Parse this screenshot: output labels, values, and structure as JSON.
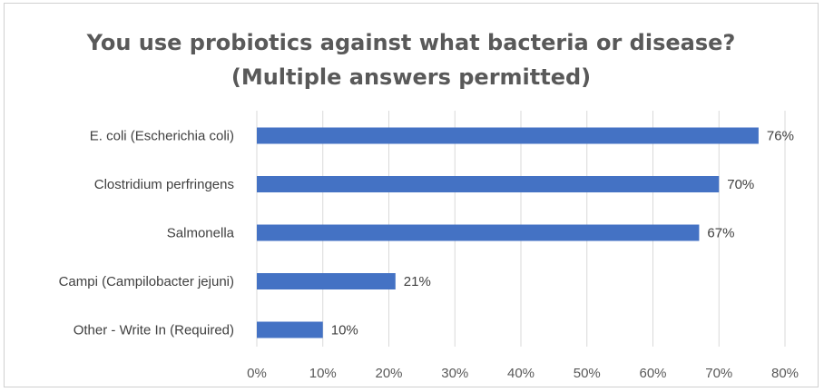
{
  "chart_data": {
    "type": "bar",
    "orientation": "horizontal",
    "title_line1": "You use probiotics against what bacteria or disease?",
    "title_line2": "(Multiple answers permitted)",
    "categories": [
      "E. coli (Escherichia coli)",
      "Clostridium perfringens",
      "Salmonella",
      "Campi (Campilobacter jejuni)",
      "Other - Write In (Required)"
    ],
    "values": [
      76,
      70,
      67,
      21,
      10
    ],
    "data_labels": [
      "76%",
      "70%",
      "67%",
      "21%",
      "10%"
    ],
    "xlim": [
      0,
      80
    ],
    "x_ticks": [
      0,
      10,
      20,
      30,
      40,
      50,
      60,
      70,
      80
    ],
    "x_tick_labels": [
      "0%",
      "10%",
      "20%",
      "30%",
      "40%",
      "50%",
      "60%",
      "70%",
      "80%"
    ],
    "grid": "vertical",
    "legend": "none",
    "bar_color": "#4472c4",
    "grid_color": "#d9d9d9"
  }
}
